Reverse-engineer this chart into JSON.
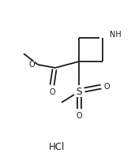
{
  "background_color": "#ffffff",
  "line_color": "#1a1a1a",
  "line_width": 1.3,
  "font_size_atom": 7.0,
  "font_size_hcl": 8.5,
  "hcl_text": "HCl",
  "nh_text": "NH",
  "s_text": "S",
  "o_text": "O",
  "figsize": [
    1.66,
    2.08
  ],
  "dpi": 100,
  "xlim": [
    0,
    1.66
  ],
  "ylim": [
    0,
    2.08
  ]
}
